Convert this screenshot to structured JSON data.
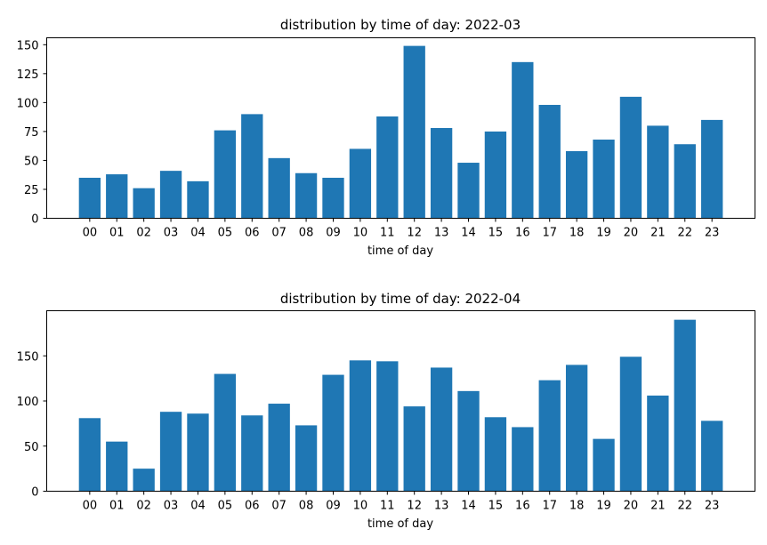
{
  "chart_data": [
    {
      "type": "bar",
      "title": "distribution by time of day: 2022-03",
      "xlabel": "time of day",
      "ylabel": "",
      "categories": [
        "00",
        "01",
        "02",
        "03",
        "04",
        "05",
        "06",
        "07",
        "08",
        "09",
        "10",
        "11",
        "12",
        "13",
        "14",
        "15",
        "16",
        "17",
        "18",
        "19",
        "20",
        "21",
        "22",
        "23"
      ],
      "values": [
        35,
        38,
        26,
        41,
        32,
        76,
        90,
        52,
        39,
        35,
        60,
        88,
        149,
        78,
        48,
        75,
        135,
        98,
        58,
        68,
        105,
        80,
        64,
        85
      ],
      "ylim": [
        0,
        156
      ],
      "yticks": [
        0,
        25,
        50,
        75,
        100,
        125,
        150
      ],
      "color": "#1f77b4",
      "grid": false,
      "legend": "none"
    },
    {
      "type": "bar",
      "title": "distribution by time of day: 2022-04",
      "xlabel": "time of day",
      "ylabel": "",
      "categories": [
        "00",
        "01",
        "02",
        "03",
        "04",
        "05",
        "06",
        "07",
        "08",
        "09",
        "10",
        "11",
        "12",
        "13",
        "14",
        "15",
        "16",
        "17",
        "18",
        "19",
        "20",
        "21",
        "22",
        "23"
      ],
      "values": [
        81,
        55,
        25,
        88,
        86,
        130,
        84,
        97,
        73,
        129,
        145,
        144,
        94,
        137,
        111,
        82,
        71,
        123,
        140,
        58,
        149,
        106,
        190,
        78
      ],
      "ylim": [
        0,
        200
      ],
      "yticks": [
        0,
        50,
        100,
        150
      ],
      "color": "#1f77b4",
      "grid": false,
      "legend": "none"
    }
  ]
}
